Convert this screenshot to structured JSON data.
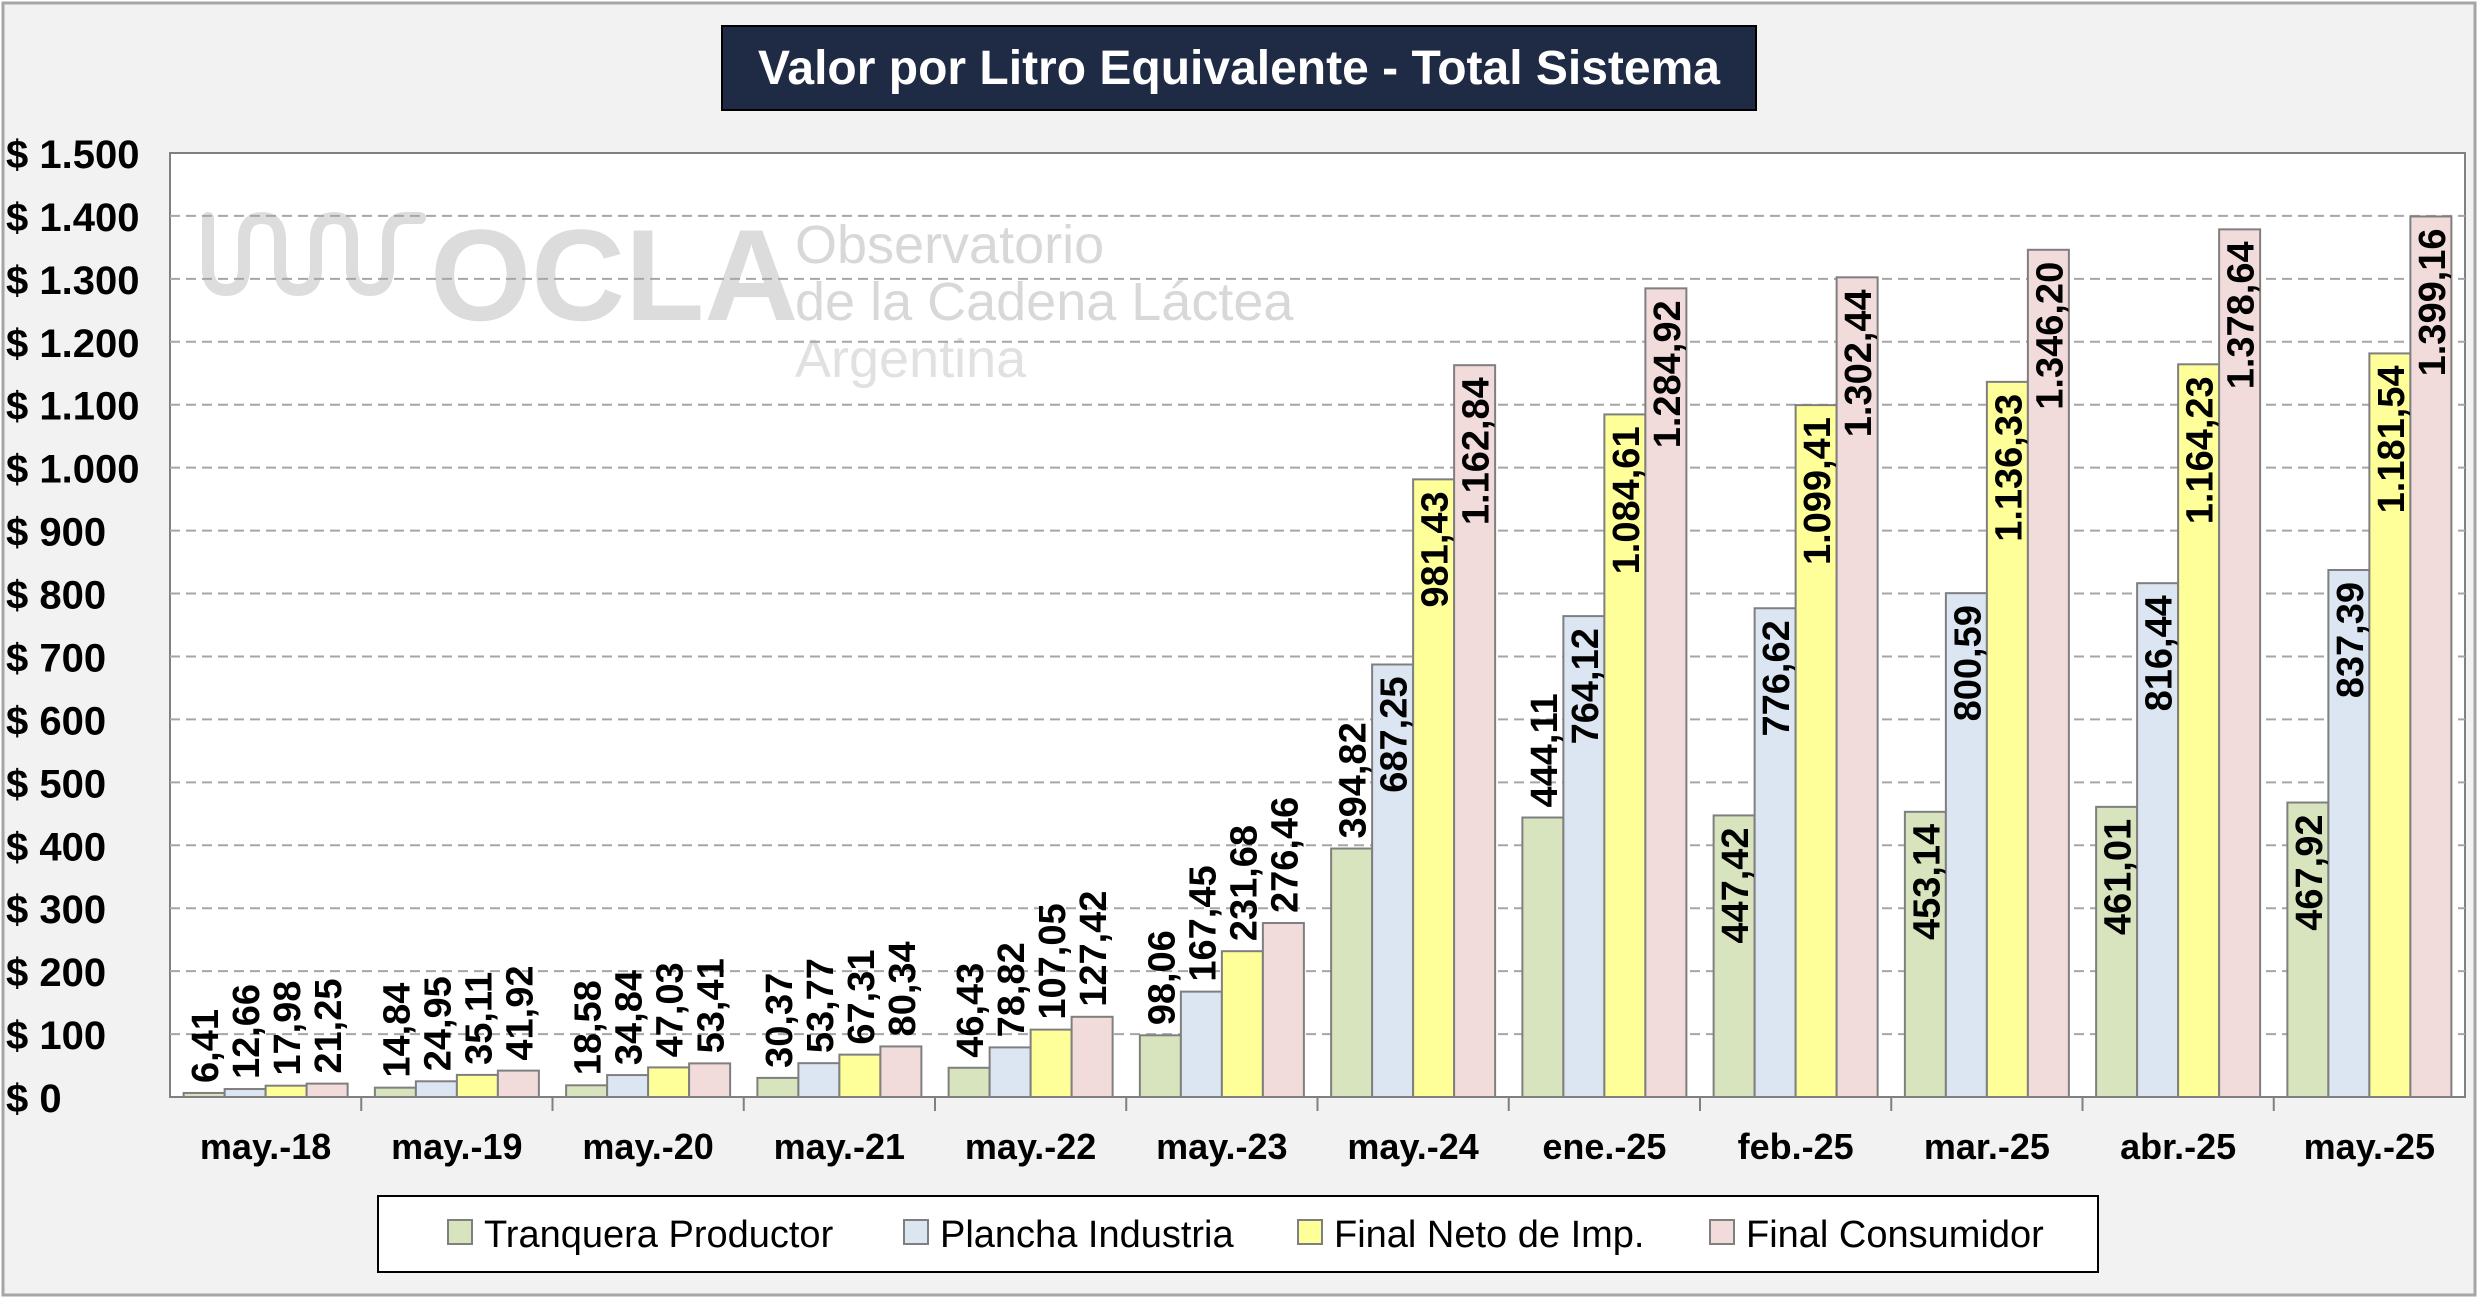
{
  "chart_data": {
    "type": "bar",
    "title": "Valor por Litro Equivalente - Total Sistema",
    "categories": [
      "may.-18",
      "may.-19",
      "may.-20",
      "may.-21",
      "may.-22",
      "may.-23",
      "may.-24",
      "ene.-25",
      "feb.-25",
      "mar.-25",
      "abr.-25",
      "may.-25"
    ],
    "ylim": [
      0,
      1500
    ],
    "yticks": [
      0,
      100,
      200,
      300,
      400,
      500,
      600,
      700,
      800,
      900,
      1000,
      1100,
      1200,
      1300,
      1400,
      1500
    ],
    "ytick_labels": [
      "$ 0",
      "$ 100",
      "$ 200",
      "$ 300",
      "$ 400",
      "$ 500",
      "$ 600",
      "$ 700",
      "$ 800",
      "$ 900",
      "$ 1.000",
      "$ 1.100",
      "$ 1.200",
      "$ 1.300",
      "$ 1.400",
      "$ 1.500"
    ],
    "grid": true,
    "legend_position": "bottom",
    "series": [
      {
        "name": "Tranquera Productor",
        "color": "#d7e4bd",
        "values": [
          6.41,
          14.84,
          18.58,
          30.37,
          46.43,
          98.06,
          394.82,
          444.11,
          447.42,
          453.14,
          461.01,
          467.92
        ],
        "labels": [
          "6,41",
          "14,84",
          "18,58",
          "30,37",
          "46,43",
          "98,06",
          "394,82",
          "444,11",
          "447,42",
          "453,14",
          "461,01",
          "467,92"
        ]
      },
      {
        "name": "Plancha Industria",
        "color": "#dce6f2",
        "values": [
          12.66,
          24.95,
          34.84,
          53.77,
          78.82,
          167.45,
          687.25,
          764.12,
          776.62,
          800.59,
          816.44,
          837.39
        ],
        "labels": [
          "12,66",
          "24,95",
          "34,84",
          "53,77",
          "78,82",
          "167,45",
          "687,25",
          "764,12",
          "776,62",
          "800,59",
          "816,44",
          "837,39"
        ]
      },
      {
        "name": "Final Neto de Imp.",
        "color": "#ffff99",
        "values": [
          17.98,
          35.11,
          47.03,
          67.31,
          107.05,
          231.68,
          981.43,
          1084.61,
          1099.41,
          1136.33,
          1164.23,
          1181.54
        ],
        "labels": [
          "17,98",
          "35,11",
          "47,03",
          "67,31",
          "107,05",
          "231,68",
          "981,43",
          "1.084,61",
          "1.099,41",
          "1.136,33",
          "1.164,23",
          "1.181,54"
        ]
      },
      {
        "name": "Final Consumidor",
        "color": "#f2dcdb",
        "values": [
          21.25,
          41.92,
          53.41,
          80.34,
          127.42,
          276.46,
          1162.84,
          1284.92,
          1302.44,
          1346.2,
          1378.64,
          1399.16
        ],
        "labels": [
          "21,25",
          "41,92",
          "53,41",
          "80,34",
          "127,42",
          "276,46",
          "1.162,84",
          "1.284,92",
          "1.302,44",
          "1.346,20",
          "1.378,64",
          "1.399,16"
        ]
      }
    ],
    "watermark": {
      "logo_text": "OCLA",
      "line1": "Observatorio",
      "line2": "de la Cadena Láctea",
      "line3": "Argentina"
    }
  }
}
